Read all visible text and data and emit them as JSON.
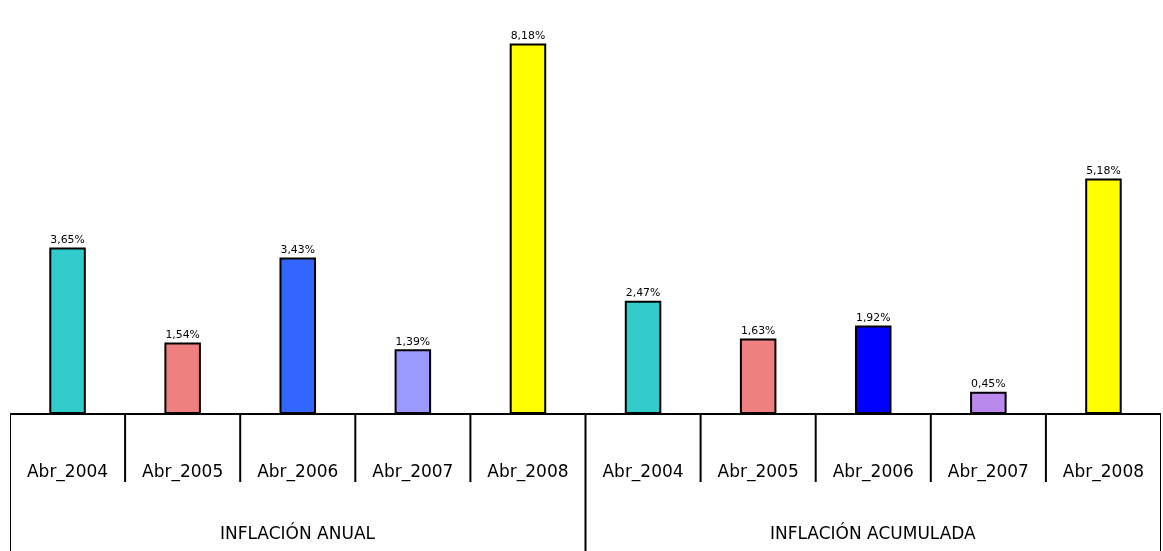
{
  "chart_data": {
    "type": "bar",
    "categories": [
      "Abr_2004",
      "Abr_2005",
      "Abr_2006",
      "Abr_2007",
      "Abr_2008",
      "Abr_2004",
      "Abr_2005",
      "Abr_2006",
      "Abr_2007",
      "Abr_2008"
    ],
    "values": [
      3.65,
      1.54,
      3.43,
      1.39,
      8.18,
      2.47,
      1.63,
      1.92,
      0.45,
      5.18
    ],
    "colors": [
      "#33cccc",
      "#f08080",
      "#3366ff",
      "#9999ff",
      "#ffff00",
      "#33cccc",
      "#f08080",
      "#0000ff",
      "#bb88ee",
      "#ffff00"
    ],
    "value_labels": [
      "3,65%",
      "1,54%",
      "3,43%",
      "1,39%",
      "8,18%",
      "2,47%",
      "1,63%",
      "1,92%",
      "0,45%",
      "5,18%"
    ],
    "annotations": [
      "INFLACIÓN ANUAL",
      "INFLACIÓN ACUMULADA"
    ]
  }
}
